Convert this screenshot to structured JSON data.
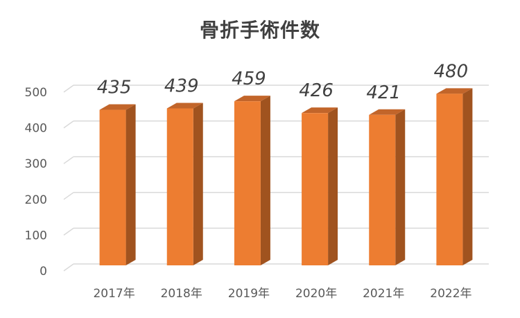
{
  "chart_data": {
    "type": "bar",
    "title": "骨折手術件数",
    "categories": [
      "2017年",
      "2018年",
      "2019年",
      "2020年",
      "2021年",
      "2022年"
    ],
    "values": [
      435,
      439,
      459,
      426,
      421,
      480
    ],
    "ylim": [
      0,
      500
    ],
    "yticks": [
      "0",
      "100",
      "200",
      "300",
      "400",
      "500"
    ],
    "data_labels": [
      "435",
      "439",
      "459",
      "426",
      "421",
      "480"
    ],
    "grid": true,
    "legend": "none",
    "colors": {
      "bar_front": "#ED7D31",
      "bar_side": "#A0531F",
      "bar_top": "#C2652A",
      "grid": "#D9D9D9"
    }
  }
}
